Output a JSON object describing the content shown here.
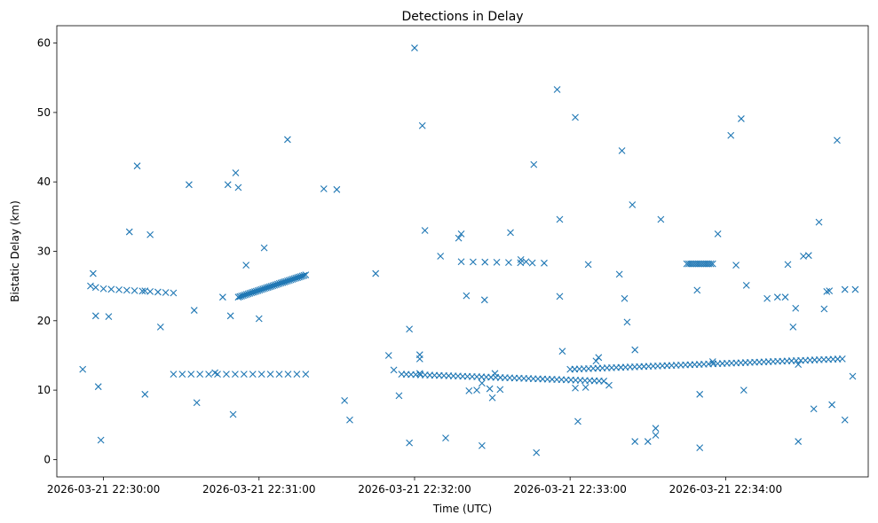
{
  "chart_data": {
    "type": "scatter",
    "title": "Detections in Delay",
    "xlabel": "Time (UTC)",
    "ylabel": "Bistatic Delay (km)",
    "marker": "x",
    "color": "#1f77b4",
    "xlim": [
      -18,
      295
    ],
    "ylim": [
      -2.5,
      62.5
    ],
    "x_unit": "seconds after 2026-03-21 22:30:00",
    "xticks": [
      {
        "value": 0,
        "label": "2026-03-21 22:30:00"
      },
      {
        "value": 60,
        "label": "2026-03-21 22:31:00"
      },
      {
        "value": 120,
        "label": "2026-03-21 22:32:00"
      },
      {
        "value": 180,
        "label": "2026-03-21 22:33:00"
      },
      {
        "value": 240,
        "label": "2026-03-21 22:34:00"
      }
    ],
    "yticks": [
      {
        "value": 0,
        "label": "0"
      },
      {
        "value": 10,
        "label": "10"
      },
      {
        "value": 20,
        "label": "20"
      },
      {
        "value": 30,
        "label": "30"
      },
      {
        "value": 40,
        "label": "40"
      },
      {
        "value": 50,
        "label": "50"
      },
      {
        "value": 60,
        "label": "60"
      }
    ],
    "tracks": [
      {
        "name": "track-a",
        "x_start": 0,
        "x_end": 27,
        "y_start": 24.6,
        "y_end": 24.0,
        "count": 10
      },
      {
        "name": "track-b",
        "x_start": 52,
        "x_end": 78,
        "y_start": 23.4,
        "y_end": 26.6,
        "count": 42
      },
      {
        "name": "track-c",
        "x_start": 27,
        "x_end": 78,
        "y_start": 12.3,
        "y_end": 12.3,
        "count": 16
      },
      {
        "name": "track-d",
        "x_start": 115,
        "x_end": 193,
        "y_start": 12.3,
        "y_end": 11.3,
        "count": 44
      },
      {
        "name": "track-e",
        "x_start": 180,
        "x_end": 285,
        "y_start": 13.0,
        "y_end": 14.5,
        "count": 60
      },
      {
        "name": "track-f",
        "x_start": 138,
        "x_end": 170,
        "y_start": 28.5,
        "y_end": 28.3,
        "count": 8
      },
      {
        "name": "track-g",
        "x_start": 225,
        "x_end": 235,
        "y_start": 28.2,
        "y_end": 28.2,
        "count": 14
      }
    ],
    "scatter_points": [
      [
        -8,
        13.0
      ],
      [
        -5,
        25.0
      ],
      [
        -4,
        26.8
      ],
      [
        -3,
        24.8
      ],
      [
        -2,
        10.5
      ],
      [
        -1,
        2.8
      ],
      [
        -3,
        20.7
      ],
      [
        2,
        20.6
      ],
      [
        10,
        32.8
      ],
      [
        13,
        42.3
      ],
      [
        16,
        24.3
      ],
      [
        16,
        9.4
      ],
      [
        18,
        32.4
      ],
      [
        22,
        19.1
      ],
      [
        33,
        39.6
      ],
      [
        35,
        21.5
      ],
      [
        36,
        8.2
      ],
      [
        43,
        12.5
      ],
      [
        46,
        23.4
      ],
      [
        48,
        39.6
      ],
      [
        49,
        20.7
      ],
      [
        50,
        6.5
      ],
      [
        51,
        41.3
      ],
      [
        52,
        39.2
      ],
      [
        55,
        28.0
      ],
      [
        60,
        20.3
      ],
      [
        62,
        30.5
      ],
      [
        71,
        46.1
      ],
      [
        85,
        39.0
      ],
      [
        90,
        38.9
      ],
      [
        93,
        8.5
      ],
      [
        95,
        5.7
      ],
      [
        105,
        26.8
      ],
      [
        110,
        15.0
      ],
      [
        112,
        12.9
      ],
      [
        114,
        9.2
      ],
      [
        118,
        18.8
      ],
      [
        118,
        2.4
      ],
      [
        120,
        59.3
      ],
      [
        122,
        15.1
      ],
      [
        122,
        14.5
      ],
      [
        123,
        48.1
      ],
      [
        124,
        33.0
      ],
      [
        122,
        12.4
      ],
      [
        130,
        29.3
      ],
      [
        132,
        3.1
      ],
      [
        137,
        31.9
      ],
      [
        138,
        32.5
      ],
      [
        140,
        23.6
      ],
      [
        141,
        9.9
      ],
      [
        144,
        10.0
      ],
      [
        146,
        11.0
      ],
      [
        146,
        2.0
      ],
      [
        147,
        23.0
      ],
      [
        149,
        10.2
      ],
      [
        150,
        8.9
      ],
      [
        151,
        12.4
      ],
      [
        153,
        10.1
      ],
      [
        157,
        32.7
      ],
      [
        161,
        28.8
      ],
      [
        163,
        28.5
      ],
      [
        166,
        42.5
      ],
      [
        167,
        1.0
      ],
      [
        175,
        53.3
      ],
      [
        176,
        34.6
      ],
      [
        176,
        23.5
      ],
      [
        177,
        15.6
      ],
      [
        182,
        49.3
      ],
      [
        183,
        5.5
      ],
      [
        182,
        10.3
      ],
      [
        186,
        10.4
      ],
      [
        187,
        28.1
      ],
      [
        190,
        14.2
      ],
      [
        191,
        14.7
      ],
      [
        195,
        10.7
      ],
      [
        199,
        26.7
      ],
      [
        200,
        44.5
      ],
      [
        201,
        23.2
      ],
      [
        202,
        19.8
      ],
      [
        204,
        36.7
      ],
      [
        205,
        15.8
      ],
      [
        205,
        2.6
      ],
      [
        210,
        2.6
      ],
      [
        213,
        4.5
      ],
      [
        213,
        3.5
      ],
      [
        215,
        34.6
      ],
      [
        229,
        24.4
      ],
      [
        230,
        1.7
      ],
      [
        230,
        9.4
      ],
      [
        235,
        14.1
      ],
      [
        237,
        32.5
      ],
      [
        242,
        46.7
      ],
      [
        244,
        28.0
      ],
      [
        246,
        49.1
      ],
      [
        248,
        25.1
      ],
      [
        247,
        10.0
      ],
      [
        256,
        23.2
      ],
      [
        260,
        23.4
      ],
      [
        263,
        23.4
      ],
      [
        264,
        28.1
      ],
      [
        266,
        19.1
      ],
      [
        267,
        21.8
      ],
      [
        268,
        13.7
      ],
      [
        268,
        2.6
      ],
      [
        270,
        29.3
      ],
      [
        272,
        29.4
      ],
      [
        274,
        7.3
      ],
      [
        276,
        34.2
      ],
      [
        278,
        21.7
      ],
      [
        279,
        24.2
      ],
      [
        280,
        24.3
      ],
      [
        281,
        7.9
      ],
      [
        283,
        46.0
      ],
      [
        286,
        24.5
      ],
      [
        286,
        5.7
      ],
      [
        290,
        24.5
      ],
      [
        289,
        12.0
      ]
    ]
  }
}
